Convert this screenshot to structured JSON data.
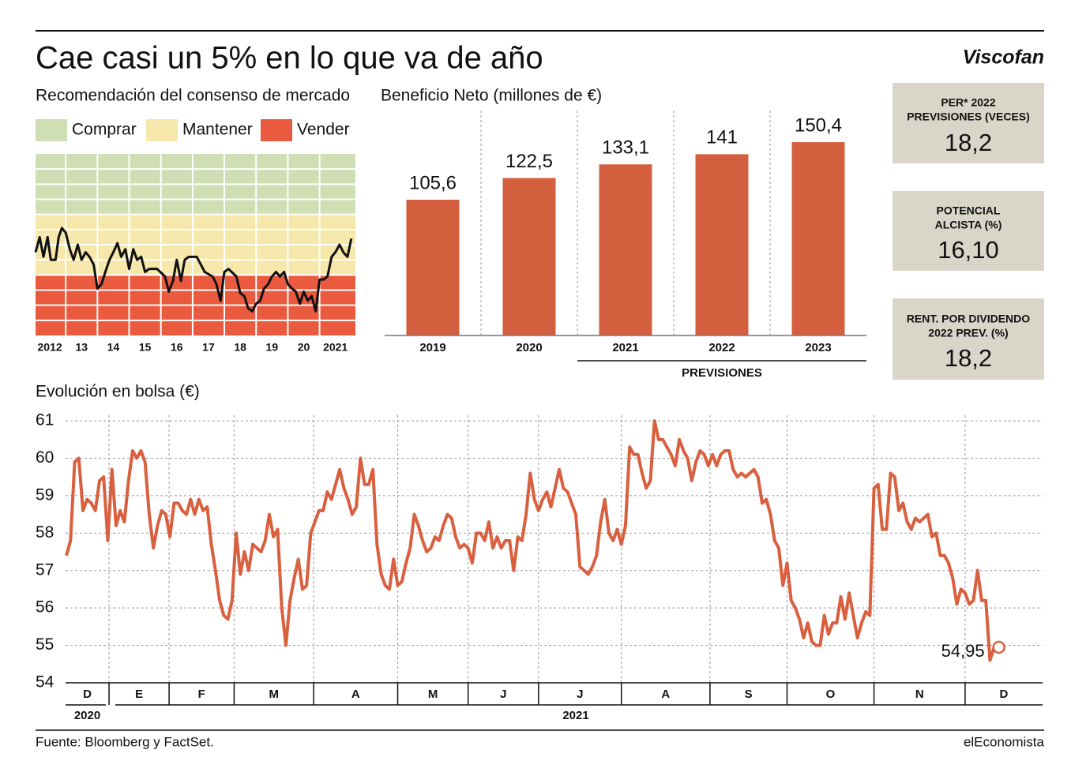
{
  "title": "Cae casi un 5% en lo que va de año",
  "logo": "Viscofan",
  "source": "Fuente: Bloomberg y FactSet.",
  "publisher": "elEconomista",
  "stats": [
    {
      "label": [
        "PER* 2022",
        "PREVISIONES (VECES)"
      ],
      "value": "18,2"
    },
    {
      "label": [
        "POTENCIAL",
        "ALCISTA (%)"
      ],
      "value": "16,10"
    },
    {
      "label": [
        "RENT. POR DIVIDENDO",
        "2022 PREV. (%)"
      ],
      "value": "18,2"
    }
  ],
  "chart_data": [
    {
      "type": "line",
      "title": "Recomendación del consenso de mercado",
      "color": "#111111",
      "bands": [
        {
          "name": "Comprar",
          "color": "#cfdeb3",
          "range": [
            8,
            12
          ]
        },
        {
          "name": "Mantener",
          "color": "#f6e7ab",
          "range": [
            4,
            8
          ]
        },
        {
          "name": "Vender",
          "color": "#e95a3e",
          "range": [
            0,
            4
          ]
        }
      ],
      "xlim": [
        2011.55,
        2021.63
      ],
      "xticks": [
        {
          "value": 2012,
          "label": "2012"
        },
        {
          "value": 2013,
          "label": "13"
        },
        {
          "value": 2014,
          "label": "14"
        },
        {
          "value": 2015,
          "label": "15"
        },
        {
          "value": 2016,
          "label": "16"
        },
        {
          "value": 2017,
          "label": "17"
        },
        {
          "value": 2018,
          "label": "18"
        },
        {
          "value": 2019,
          "label": "19"
        },
        {
          "value": 2020,
          "label": "20"
        },
        {
          "value": 2021,
          "label": "2021"
        }
      ],
      "ylim": [
        0,
        12
      ],
      "yticks": [
        1,
        2,
        3,
        4,
        5,
        6,
        7,
        8,
        9,
        10,
        11
      ],
      "grid": true,
      "x": [
        2011.55,
        2011.68,
        2011.8,
        2011.93,
        2012.03,
        2012.18,
        2012.28,
        2012.38,
        2012.5,
        2012.63,
        2012.75,
        2012.88,
        2013.0,
        2013.13,
        2013.25,
        2013.38,
        2013.5,
        2013.63,
        2013.75,
        2013.88,
        2014.0,
        2014.13,
        2014.25,
        2014.38,
        2014.5,
        2014.63,
        2014.75,
        2014.88,
        2015.0,
        2015.13,
        2015.38,
        2015.63,
        2015.75,
        2015.88,
        2016.0,
        2016.13,
        2016.25,
        2016.38,
        2016.63,
        2016.88,
        2017.13,
        2017.25,
        2017.38,
        2017.5,
        2017.63,
        2017.88,
        2018.0,
        2018.13,
        2018.25,
        2018.38,
        2018.5,
        2018.63,
        2018.75,
        2018.88,
        2019.0,
        2019.13,
        2019.25,
        2019.38,
        2019.5,
        2019.63,
        2019.75,
        2019.88,
        2020.0,
        2020.13,
        2020.25,
        2020.38,
        2020.5,
        2020.63,
        2020.75,
        2020.88,
        2021.0,
        2021.13,
        2021.25,
        2021.38,
        2021.5
      ],
      "values": [
        5.5,
        6.5,
        5.2,
        6.5,
        5.0,
        5.0,
        6.5,
        7.1,
        6.8,
        5.7,
        5.0,
        6.0,
        5.0,
        5.5,
        5.2,
        4.7,
        3.1,
        3.4,
        4.2,
        5.0,
        5.5,
        6.1,
        5.2,
        5.7,
        4.4,
        5.7,
        5.0,
        5.2,
        4.2,
        4.4,
        4.4,
        3.9,
        2.9,
        3.6,
        5.0,
        3.6,
        5.0,
        5.2,
        5.2,
        4.2,
        3.9,
        3.4,
        2.3,
        4.2,
        4.4,
        3.9,
        2.8,
        2.6,
        1.8,
        1.6,
        2.1,
        2.3,
        3.1,
        3.4,
        3.9,
        4.2,
        3.9,
        4.2,
        3.4,
        3.1,
        2.9,
        2.1,
        2.9,
        2.3,
        2.6,
        1.6,
        3.7,
        3.7,
        3.9,
        5.2,
        5.5,
        6.0,
        5.5,
        5.2,
        6.4
      ]
    },
    {
      "type": "bar",
      "title": "Beneficio Neto (millones de €)",
      "color": "#d45f3f",
      "categories": [
        "2019",
        "2020",
        "2021",
        "2022",
        "2023"
      ],
      "values": [
        105.6,
        122.5,
        133.1,
        141,
        150.4
      ],
      "value_labels": [
        "105,6",
        "122,5",
        "133,1",
        "141",
        "150,4"
      ],
      "ylim": [
        0,
        175
      ],
      "annotation": "PREVISIONES"
    },
    {
      "type": "line",
      "title": "Evolución en bolsa (€)",
      "color": "#d9603f",
      "xlim": [
        -0.2,
        235.7
      ],
      "xticks": [
        10.3,
        24.8,
        40.5,
        59.7,
        80,
        97,
        114,
        134,
        155.4,
        174,
        195,
        217
      ],
      "x_labels": [
        "D",
        "E",
        "F",
        "M",
        "A",
        "M",
        "J",
        "J",
        "A",
        "S",
        "O",
        "N",
        "D"
      ],
      "year_labels": [
        "2020",
        "2021"
      ],
      "ylim": [
        54,
        61.15
      ],
      "yticks": [
        54,
        55,
        56,
        57,
        58,
        59,
        60,
        61
      ],
      "grid": true,
      "last_value_label": "54,95",
      "values": [
        57.4,
        57.8,
        59.9,
        60.0,
        58.6,
        58.9,
        58.8,
        58.6,
        59.4,
        59.5,
        57.8,
        59.7,
        58.2,
        58.6,
        58.3,
        59.4,
        60.2,
        60.0,
        60.2,
        59.9,
        58.5,
        57.6,
        58.2,
        58.6,
        58.5,
        57.9,
        58.8,
        58.8,
        58.6,
        58.5,
        58.9,
        58.5,
        58.9,
        58.6,
        58.7,
        57.7,
        57.0,
        56.2,
        55.8,
        55.7,
        56.2,
        58.0,
        56.9,
        57.5,
        57.0,
        57.7,
        57.6,
        57.5,
        57.8,
        58.5,
        57.9,
        58.1,
        56.0,
        55.0,
        56.2,
        56.8,
        57.3,
        56.5,
        56.6,
        58.0,
        58.3,
        58.6,
        58.6,
        59.1,
        58.9,
        59.3,
        59.7,
        59.2,
        58.9,
        58.5,
        58.7,
        60.0,
        59.3,
        59.3,
        59.7,
        57.7,
        56.9,
        56.6,
        56.5,
        57.3,
        56.6,
        56.7,
        57.2,
        57.6,
        58.5,
        58.2,
        57.8,
        57.5,
        57.6,
        57.9,
        57.8,
        58.2,
        58.5,
        58.4,
        57.9,
        57.6,
        57.7,
        57.6,
        57.2,
        58.0,
        58.0,
        57.8,
        58.3,
        57.6,
        57.9,
        57.6,
        57.8,
        57.8,
        57.0,
        57.9,
        57.8,
        58.5,
        59.6,
        58.9,
        58.6,
        58.9,
        59.1,
        58.7,
        59.2,
        59.7,
        59.2,
        59.1,
        58.8,
        58.5,
        57.1,
        57.0,
        56.9,
        57.1,
        57.4,
        58.3,
        58.9,
        58.0,
        57.8,
        58.1,
        57.7,
        58.2,
        60.3,
        60.1,
        60.1,
        59.6,
        59.2,
        59.4,
        61.0,
        60.5,
        60.5,
        60.3,
        60.1,
        59.8,
        60.5,
        60.2,
        60.0,
        59.4,
        59.9,
        60.2,
        60.1,
        59.8,
        60.1,
        59.8,
        60.1,
        60.2,
        60.2,
        59.7,
        59.5,
        59.6,
        59.5,
        59.6,
        59.7,
        59.5,
        58.8,
        58.9,
        58.5,
        57.8,
        57.6,
        56.6,
        57.2,
        56.2,
        56.0,
        55.7,
        55.2,
        55.6,
        55.1,
        55.0,
        55.0,
        55.8,
        55.3,
        55.6,
        55.6,
        56.3,
        55.7,
        56.4,
        55.8,
        55.2,
        55.6,
        55.9,
        55.8,
        59.2,
        59.3,
        58.1,
        58.1,
        59.6,
        59.5,
        58.6,
        58.8,
        58.3,
        58.1,
        58.4,
        58.3,
        58.4,
        58.5,
        57.9,
        58.0,
        57.4,
        57.4,
        57.2,
        56.8,
        56.1,
        56.5,
        56.4,
        56.1,
        56.2,
        57.0,
        56.2,
        56.2,
        54.6,
        54.95
      ]
    }
  ]
}
